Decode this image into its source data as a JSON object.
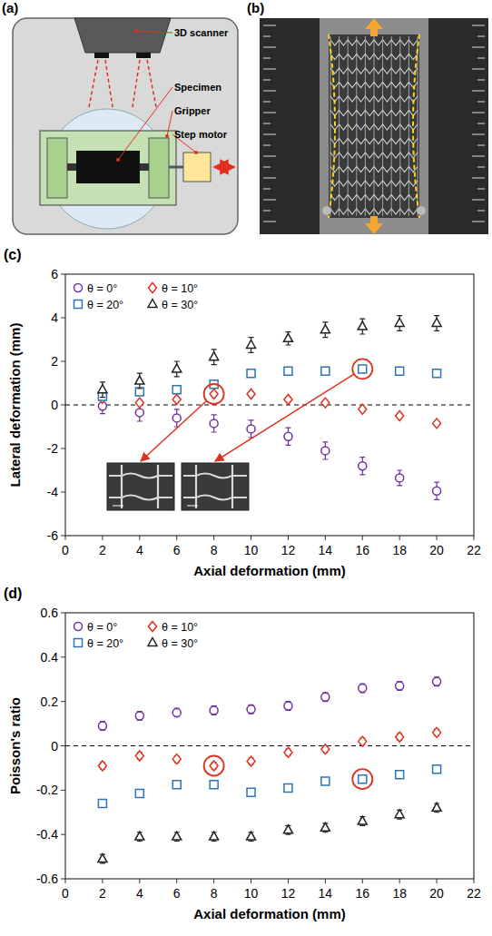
{
  "chart_data": [
    {
      "type": "scatter",
      "title": "(c)",
      "x_label": "Axial deformation (mm)",
      "y_label": "Lateral deformation (mm)",
      "x": [
        2,
        4,
        6,
        8,
        10,
        12,
        14,
        16,
        18,
        20
      ],
      "xlim": [
        0,
        22
      ],
      "xticks": [
        0,
        2,
        4,
        6,
        8,
        10,
        12,
        14,
        16,
        18,
        20,
        22
      ],
      "ylim": [
        -6,
        6
      ],
      "yticks": [
        -6,
        -4,
        -2,
        0,
        2,
        4,
        6
      ],
      "grid": false,
      "legend": "upper left",
      "ref_line": 0,
      "series": [
        {
          "name": "θ = 0°",
          "color": "#7030a0",
          "marker": "circle",
          "values": [
            -0.05,
            -0.35,
            -0.6,
            -0.85,
            -1.1,
            -1.45,
            -2.1,
            -2.8,
            -3.35,
            -3.95
          ],
          "errors": [
            0.35,
            0.4,
            0.4,
            0.4,
            0.4,
            0.4,
            0.4,
            0.4,
            0.35,
            0.4
          ]
        },
        {
          "name": "θ = 10°",
          "color": "#e0301e",
          "marker": "diamond",
          "values": [
            0.3,
            0.1,
            0.25,
            0.5,
            0.5,
            0.25,
            0.1,
            -0.2,
            -0.5,
            -0.85
          ],
          "errors": [
            0.1,
            0.1,
            0.1,
            0.1,
            0.1,
            0.1,
            0.1,
            0.1,
            0.1,
            0.1
          ]
        },
        {
          "name": "θ = 20°",
          "color": "#2e75b6",
          "marker": "square",
          "values": [
            0.4,
            0.6,
            0.7,
            0.95,
            1.45,
            1.55,
            1.55,
            1.65,
            1.55,
            1.45
          ],
          "errors": [
            0.1,
            0.1,
            0.1,
            0.1,
            0.1,
            0.1,
            0.1,
            0.1,
            0.1,
            0.1
          ]
        },
        {
          "name": "θ = 30°",
          "color": "#222222",
          "marker": "triangle",
          "values": [
            0.7,
            1.1,
            1.65,
            2.2,
            2.75,
            3.05,
            3.45,
            3.6,
            3.75,
            3.75
          ],
          "errors": [
            0.35,
            0.35,
            0.35,
            0.35,
            0.35,
            0.3,
            0.35,
            0.35,
            0.35,
            0.35
          ]
        }
      ],
      "highlights": [
        {
          "series": 1,
          "x": 8
        },
        {
          "series": 2,
          "x": 16
        }
      ]
    },
    {
      "type": "scatter",
      "title": "(d)",
      "x_label": "Axial deformation (mm)",
      "y_label": "Poisson's ratio",
      "x": [
        2,
        4,
        6,
        8,
        10,
        12,
        14,
        16,
        18,
        20
      ],
      "xlim": [
        0,
        22
      ],
      "xticks": [
        0,
        2,
        4,
        6,
        8,
        10,
        12,
        14,
        16,
        18,
        20,
        22
      ],
      "ylim": [
        -0.6,
        0.6
      ],
      "yticks": [
        -0.6,
        -0.4,
        -0.2,
        0,
        0.2,
        0.4,
        0.6
      ],
      "grid": false,
      "legend": "upper left",
      "ref_line": 0,
      "series": [
        {
          "name": "θ = 0°",
          "color": "#7030a0",
          "marker": "circle",
          "values": [
            0.09,
            0.135,
            0.15,
            0.16,
            0.165,
            0.18,
            0.22,
            0.26,
            0.27,
            0.29
          ],
          "errors": [
            0.02,
            0.02,
            0.02,
            0.02,
            0.02,
            0.02,
            0.02,
            0.02,
            0.02,
            0.02
          ]
        },
        {
          "name": "θ = 10°",
          "color": "#e0301e",
          "marker": "diamond",
          "values": [
            -0.09,
            -0.045,
            -0.06,
            -0.09,
            -0.07,
            -0.03,
            -0.015,
            0.02,
            0.04,
            0.06
          ],
          "errors": [
            0.015,
            0.015,
            0.015,
            0.015,
            0.015,
            0.015,
            0.015,
            0.015,
            0.015,
            0.015
          ]
        },
        {
          "name": "θ = 20°",
          "color": "#2e75b6",
          "marker": "square",
          "values": [
            -0.26,
            -0.215,
            -0.175,
            -0.175,
            -0.21,
            -0.19,
            -0.16,
            -0.15,
            -0.13,
            -0.105
          ],
          "errors": [
            0.015,
            0.015,
            0.015,
            0.015,
            0.015,
            0.015,
            0.015,
            0.015,
            0.015,
            0.015
          ]
        },
        {
          "name": "θ = 30°",
          "color": "#222222",
          "marker": "triangle",
          "values": [
            -0.51,
            -0.41,
            -0.41,
            -0.41,
            -0.41,
            -0.38,
            -0.37,
            -0.34,
            -0.31,
            -0.28
          ],
          "errors": [
            0.02,
            0.02,
            0.02,
            0.02,
            0.02,
            0.02,
            0.02,
            0.02,
            0.02,
            0.02
          ]
        }
      ],
      "highlights": [
        {
          "series": 1,
          "x": 8
        },
        {
          "series": 2,
          "x": 16
        }
      ]
    }
  ],
  "diagram": {
    "panel_label": "(a)",
    "labels": {
      "scanner": "3D scanner",
      "specimen": "Specimen",
      "gripper": "Gripper",
      "motor": "Step motor"
    }
  },
  "photo": {
    "panel_label": "(b)"
  }
}
